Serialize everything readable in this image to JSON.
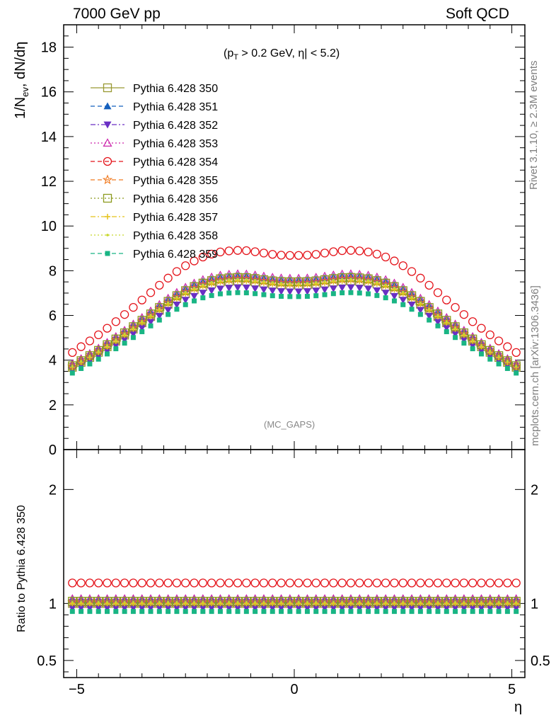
{
  "header": {
    "left": "7000 GeV pp",
    "right": "Soft QCD"
  },
  "side_labels": {
    "rivet": "Rivet 3.1.10, ≥ 2.3M events",
    "mcplots": "mcplots.cern.ch [arXiv:1306.3436]"
  },
  "main_panel": {
    "ylabel_base": "1/N",
    "ylabel_sub": "ev",
    "ylabel_rest": ", dN/dη",
    "cut_open": "(p",
    "cut_sub": "T",
    "cut_rest": " > 0.2 GeV, η| < 5.2)",
    "analysis_tag": "(MC_GAPS)"
  },
  "ratio_panel": {
    "ylabel": "Ratio to Pythia 6.428 350"
  },
  "xlabel": "η",
  "chart_data": {
    "type": "scatter",
    "title": "",
    "xlabel": "η",
    "ylabel": "1/N_ev, dN/dη",
    "xlim": [
      -5.3,
      5.3
    ],
    "ylim": [
      0,
      19
    ],
    "ratio_ylim": [
      0.35,
      2.35
    ],
    "x_ticks": [
      "−5",
      "0",
      "5"
    ],
    "y_ticks": [
      "0",
      "2",
      "4",
      "6",
      "8",
      "10",
      "12",
      "14",
      "16",
      "18"
    ],
    "ratio_ticks": [
      "0.5",
      "1",
      "2"
    ],
    "x": [
      -5.1,
      -4.9,
      -4.7,
      -4.5,
      -4.3,
      -4.1,
      -3.9,
      -3.7,
      -3.5,
      -3.3,
      -3.1,
      -2.9,
      -2.7,
      -2.5,
      -2.3,
      -2.1,
      -1.9,
      -1.7,
      -1.5,
      -1.3,
      -1.1,
      -0.9,
      -0.7,
      -0.5,
      -0.3,
      -0.1,
      0.1,
      0.3,
      0.5,
      0.7,
      0.9,
      1.1,
      1.3,
      1.5,
      1.7,
      1.9,
      2.1,
      2.3,
      2.5,
      2.7,
      2.9,
      3.1,
      3.3,
      3.5,
      3.7,
      3.9,
      4.1,
      4.3,
      4.5,
      4.7,
      4.9,
      5.1
    ],
    "reference": [
      3.68,
      3.9,
      4.12,
      4.35,
      4.6,
      4.85,
      5.12,
      5.39,
      5.67,
      5.95,
      6.23,
      6.5,
      6.75,
      6.97,
      7.15,
      7.3,
      7.41,
      7.49,
      7.53,
      7.55,
      7.54,
      7.5,
      7.45,
      7.4,
      7.37,
      7.36,
      7.36,
      7.37,
      7.4,
      7.45,
      7.5,
      7.54,
      7.55,
      7.53,
      7.49,
      7.41,
      7.3,
      7.15,
      6.97,
      6.75,
      6.5,
      6.23,
      5.95,
      5.67,
      5.39,
      5.12,
      4.85,
      4.6,
      4.35,
      4.12,
      3.9,
      3.68
    ],
    "series": [
      {
        "name": "Pythia 6.428 350",
        "ratio": 1.0,
        "color": "#999933",
        "marker": "square-open",
        "dash": "solid"
      },
      {
        "name": "Pythia 6.428 351",
        "ratio": 1.03,
        "color": "#1560bd",
        "marker": "triangle-up",
        "dash": "dashed"
      },
      {
        "name": "Pythia 6.428 352",
        "ratio": 0.96,
        "color": "#6a2fc4",
        "marker": "triangle-down",
        "dash": "dashdot"
      },
      {
        "name": "Pythia 6.428 353",
        "ratio": 1.04,
        "color": "#cc22aa",
        "marker": "triangle-up-open",
        "dash": "dotted"
      },
      {
        "name": "Pythia 6.428 354",
        "ratio": 1.18,
        "color": "#e4141b",
        "marker": "circle-open",
        "dash": "dashed"
      },
      {
        "name": "Pythia 6.428 355",
        "ratio": 1.01,
        "color": "#f07a20",
        "marker": "star-open",
        "dash": "dashed"
      },
      {
        "name": "Pythia 6.428 356",
        "ratio": 1.02,
        "color": "#8c9a1e",
        "marker": "square-open",
        "dash": "dotted"
      },
      {
        "name": "Pythia 6.428 357",
        "ratio": 1.0,
        "color": "#e5c21a",
        "marker": "cross",
        "dash": "dashdot"
      },
      {
        "name": "Pythia 6.428 358",
        "ratio": 1.01,
        "color": "#c8d82a",
        "marker": "dot",
        "dash": "dotted"
      },
      {
        "name": "Pythia 6.428 359",
        "ratio": 0.93,
        "color": "#19b584",
        "marker": "square",
        "dash": "dashed"
      }
    ],
    "legend_position": "top-left",
    "grid": false
  }
}
